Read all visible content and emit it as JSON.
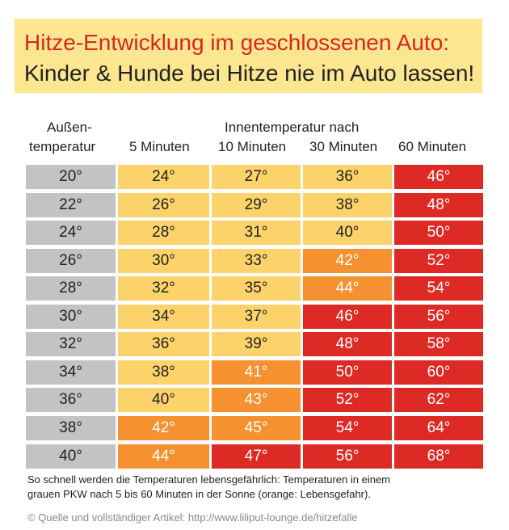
{
  "title": {
    "line1": "Hitze-Entwicklung im geschlossenen Auto:",
    "line2": "Kinder & Hunde bei Hitze nie im Auto lassen!"
  },
  "headers": {
    "outside_line1": "Außen-",
    "outside_line2": "temperatur",
    "inside_group": "Innentemperatur nach",
    "cols": [
      "5 Minuten",
      "10 Minuten",
      "30 Minuten",
      "60 Minuten"
    ]
  },
  "colors": {
    "grey": "#c3c3c3",
    "yellow": "#fcd36a",
    "orange": "#f59130",
    "red": "#de2a24"
  },
  "chart_data": {
    "type": "table",
    "columns": [
      "Außentemperatur",
      "5 Minuten",
      "10 Minuten",
      "30 Minuten",
      "60 Minuten"
    ],
    "rows": [
      [
        "20°",
        "24°",
        "27°",
        "36°",
        "46°"
      ],
      [
        "22°",
        "26°",
        "29°",
        "38°",
        "48°"
      ],
      [
        "24°",
        "28°",
        "31°",
        "40°",
        "50°"
      ],
      [
        "26°",
        "30°",
        "33°",
        "42°",
        "52°"
      ],
      [
        "28°",
        "32°",
        "35°",
        "44°",
        "54°"
      ],
      [
        "30°",
        "34°",
        "37°",
        "46°",
        "56°"
      ],
      [
        "32°",
        "36°",
        "39°",
        "48°",
        "58°"
      ],
      [
        "34°",
        "38°",
        "41°",
        "50°",
        "60°"
      ],
      [
        "36°",
        "40°",
        "43°",
        "52°",
        "62°"
      ],
      [
        "38°",
        "42°",
        "45°",
        "54°",
        "64°"
      ],
      [
        "40°",
        "44°",
        "47°",
        "56°",
        "68°"
      ]
    ],
    "cell_colors": [
      [
        "grey",
        "yellow",
        "yellow",
        "yellow",
        "red"
      ],
      [
        "grey",
        "yellow",
        "yellow",
        "yellow",
        "red"
      ],
      [
        "grey",
        "yellow",
        "yellow",
        "yellow",
        "red"
      ],
      [
        "grey",
        "yellow",
        "yellow",
        "orange",
        "red"
      ],
      [
        "grey",
        "yellow",
        "yellow",
        "orange",
        "red"
      ],
      [
        "grey",
        "yellow",
        "yellow",
        "red",
        "red"
      ],
      [
        "grey",
        "yellow",
        "yellow",
        "red",
        "red"
      ],
      [
        "grey",
        "yellow",
        "orange",
        "red",
        "red"
      ],
      [
        "grey",
        "yellow",
        "orange",
        "red",
        "red"
      ],
      [
        "grey",
        "orange",
        "orange",
        "red",
        "red"
      ],
      [
        "grey",
        "orange",
        "red",
        "red",
        "red"
      ]
    ]
  },
  "footnote": {
    "line1": "So schnell werden die Temperaturen lebensgefährlich: Temperaturen in einem",
    "line2": "grauen PKW nach 5 bis 60 Minuten in der Sonne (orange: Lebensgefahr)."
  },
  "source": "© Quelle und vollständiger Artikel: http://www.liliput-lounge.de/hitzefalle"
}
